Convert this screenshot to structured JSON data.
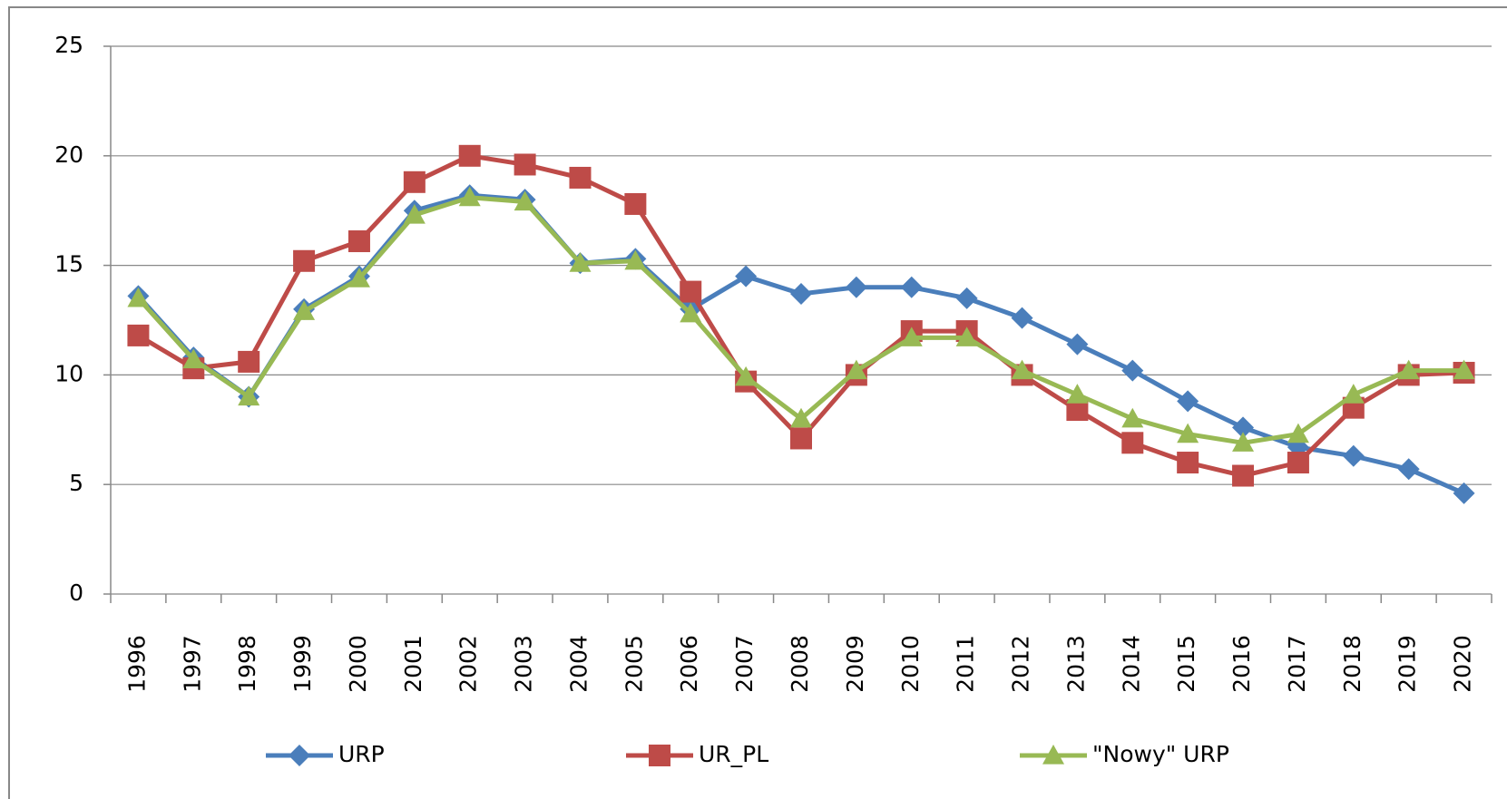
{
  "chart_data": {
    "type": "line",
    "categories": [
      "1996",
      "1997",
      "1998",
      "1999",
      "2000",
      "2001",
      "2002",
      "2003",
      "2004",
      "2005",
      "2006",
      "2007",
      "2008",
      "2009",
      "2010",
      "2011",
      "2012",
      "2013",
      "2014",
      "2015",
      "2016",
      "2017",
      "2018",
      "2019",
      "2020"
    ],
    "series": [
      {
        "name": "URP",
        "color": "#4a7ebb",
        "marker": "diamond",
        "values": [
          13.6,
          10.8,
          9.0,
          13.0,
          14.5,
          17.5,
          18.2,
          18.0,
          15.1,
          15.3,
          13.0,
          14.5,
          13.7,
          14.0,
          14.0,
          13.5,
          12.6,
          11.4,
          10.2,
          8.8,
          7.6,
          6.7,
          6.3,
          5.7,
          4.6
        ]
      },
      {
        "name": "UR_PL",
        "color": "#be4b48",
        "marker": "square",
        "values": [
          11.8,
          10.3,
          10.6,
          15.2,
          16.1,
          18.8,
          20.0,
          19.6,
          19.0,
          17.8,
          13.8,
          9.7,
          7.1,
          10.0,
          12.0,
          12.0,
          10.0,
          8.4,
          6.9,
          6.0,
          5.4,
          6.0,
          8.5,
          10.0,
          10.1
        ]
      },
      {
        "name": "\"Nowy\" URP",
        "color": "#98b954",
        "marker": "triangle",
        "values": [
          13.5,
          10.7,
          9.0,
          12.9,
          14.4,
          17.3,
          18.1,
          17.9,
          15.1,
          15.2,
          12.8,
          9.9,
          8.0,
          10.2,
          11.7,
          11.7,
          10.2,
          9.1,
          8.0,
          7.3,
          6.9,
          7.3,
          9.1,
          10.2,
          10.2
        ]
      }
    ],
    "ylim": [
      0,
      25
    ],
    "yticks": [
      0,
      5,
      10,
      15,
      20,
      25
    ],
    "grid": true,
    "legend": "bottom"
  }
}
